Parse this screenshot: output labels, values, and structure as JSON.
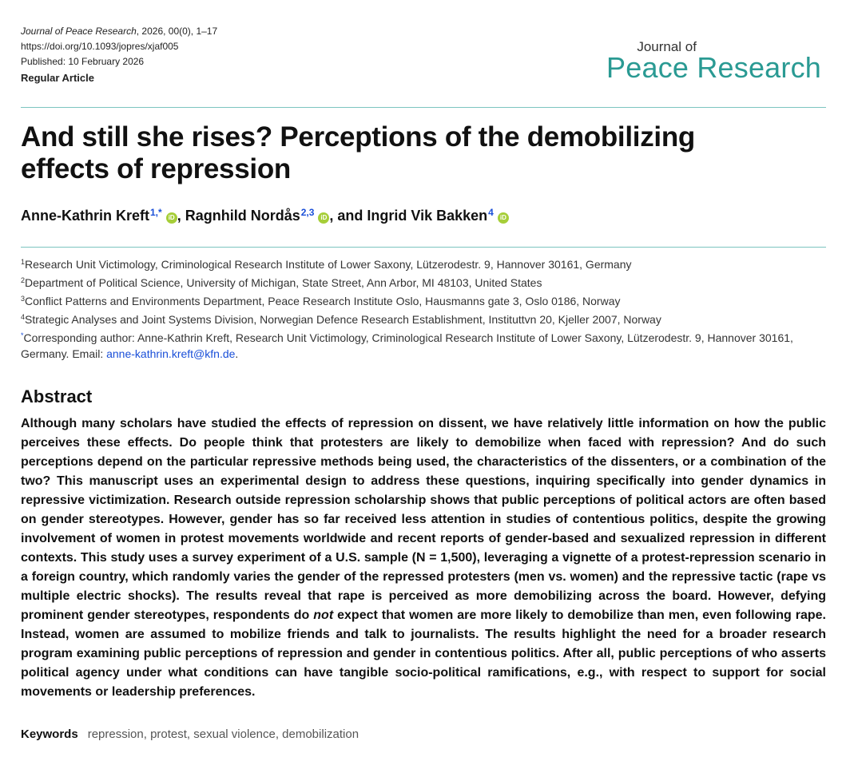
{
  "meta": {
    "journal": "Journal of Peace Research",
    "citation": ", 2026, 00(0), 1–17",
    "doi": "https://doi.org/10.1093/jopres/xjaf005",
    "published": "Published: 10 February 2026",
    "article_type": "Regular Article"
  },
  "logo": {
    "small": "Journal of",
    "big": "Peace Research",
    "color": "#2a9a93"
  },
  "title": {
    "line1": "And still she rises? Perceptions of the demobilizing",
    "line2": "effects of repression"
  },
  "authors": [
    {
      "name": "Anne-Kathrin Kreft",
      "sup": "1,*",
      "separator": ", "
    },
    {
      "name": "Ragnhild Nordås",
      "sup": "2,3",
      "separator": ", and "
    },
    {
      "name": "Ingrid Vik Bakken",
      "sup": "4",
      "separator": ""
    }
  ],
  "orcid_glyph": "iD",
  "affiliations": [
    {
      "sup": "1",
      "text": "Research Unit Victimology, Criminological Research Institute of Lower Saxony, Lützerodestr. 9, Hannover 30161, Germany"
    },
    {
      "sup": "2",
      "text": "Department of Political Science, University of Michigan, State Street, Ann Arbor, MI 48103, United States"
    },
    {
      "sup": "3",
      "text": "Conflict Patterns and Environments Department, Peace Research Institute Oslo, Hausmanns gate 3, Oslo 0186, Norway"
    },
    {
      "sup": "4",
      "text": "Strategic Analyses and Joint Systems Division, Norwegian Defence Research Establishment, Instituttvn 20, Kjeller 2007, Norway"
    }
  ],
  "corresponding": {
    "sup": "*",
    "text": "Corresponding author: Anne-Kathrin Kreft, Research Unit Victimology, Criminological Research Institute of Lower Saxony, Lützerodestr. 9, Hannover 30161, Germany. Email: ",
    "email": "anne-kathrin.kreft@kfn.de",
    "tail": "."
  },
  "abstract": {
    "heading": "Abstract",
    "part1": "Although many scholars have studied the effects of repression on dissent, we have relatively little information on how the public perceives these effects. Do people think that protesters are likely to demobilize when faced with repression? And do such perceptions depend on the particular repressive methods being used, the characteristics of the dissenters, or a combination of the two? This manuscript uses an experimental design to address these questions, inquiring specifically into gender dynamics in repressive victimization. Research outside repression scholarship shows that public perceptions of political actors are often based on gender stereotypes. However, gender has so far received less attention in studies of contentious politics, despite the growing involvement of women in protest movements worldwide and recent reports of gender-based and sexualized repression in different contexts. This study uses a survey experiment of a U.S. sample (N = 1,500), leveraging a vignette of a protest-repression scenario in a foreign country, which randomly varies the gender of the repressed protesters (men vs. women) and the repressive tactic (rape vs multiple electric shocks). The results reveal that rape is perceived as more demobilizing across the board. However, defying prominent gender stereotypes, respondents do ",
    "emph": "not",
    "part2": " expect that women are more likely to demobilize than men, even following rape. Instead, women are assumed to mobilize friends and talk to journalists. The results highlight the need for a broader research program examining public perceptions of repression and gender in contentious politics. After all, public perceptions of who asserts political agency under what conditions can have tangible socio-political ramifications, e.g., with respect to support for social movements or leadership preferences."
  },
  "keywords": {
    "label": "Keywords",
    "text": "repression, protest, sexual violence, demobilization"
  }
}
